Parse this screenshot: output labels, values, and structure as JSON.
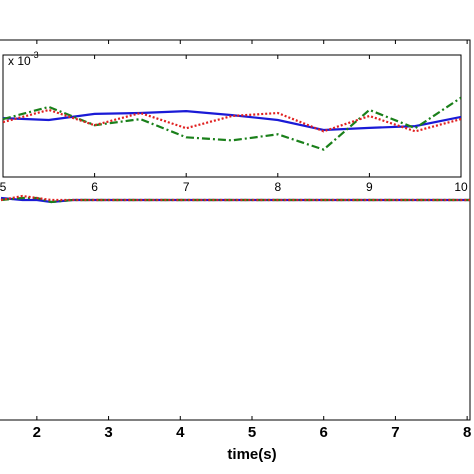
{
  "chart_data": [
    {
      "type": "line",
      "xlabel": "time(s)",
      "xlim": [
        1.5,
        8.04
      ],
      "xticks": [
        2,
        3,
        4,
        5,
        6,
        7,
        8
      ],
      "ylim": [
        -1.1,
        0.8
      ],
      "series": [
        {
          "name": "blue",
          "color": "#1a1ad6",
          "style": "solid",
          "x": [
            1.5,
            1.8,
            2.0,
            2.2,
            2.5,
            3,
            4,
            5,
            6,
            7,
            8.04
          ],
          "values": [
            0.01,
            0.0,
            0.0,
            -0.01,
            0.0,
            0,
            0,
            0,
            0,
            0,
            0
          ]
        },
        {
          "name": "green",
          "color": "#1a801a",
          "style": "dash-dot",
          "x": [
            1.5,
            1.8,
            2.0,
            2.2,
            2.5,
            3,
            4,
            5,
            6,
            7,
            8.04
          ],
          "values": [
            0.0,
            0.01,
            0.01,
            -0.01,
            0.0,
            0,
            0,
            0,
            0,
            0,
            0
          ]
        },
        {
          "name": "red",
          "color": "#e02020",
          "style": "dotted",
          "x": [
            1.5,
            1.8,
            2.0,
            2.2,
            2.5,
            3,
            4,
            5,
            6,
            7,
            8.04
          ],
          "values": [
            0.0,
            0.02,
            0.01,
            0.0,
            0.0,
            0,
            0,
            0,
            0,
            0,
            0
          ]
        }
      ]
    },
    {
      "type": "line",
      "multiplier": "x 10",
      "multiplier_exponent": "-3",
      "xlim": [
        5,
        10
      ],
      "xticks": [
        5,
        6,
        7,
        8,
        9,
        10
      ],
      "ylim": [
        -2,
        2
      ],
      "series": [
        {
          "name": "blue",
          "color": "#1a1ad6",
          "style": "solid",
          "x": [
            5,
            5.5,
            6,
            6.5,
            7,
            7.5,
            8,
            8.5,
            9,
            9.5,
            10
          ],
          "values": [
            -0.07,
            -0.13,
            0.07,
            0.1,
            0.16,
            0.03,
            -0.13,
            -0.46,
            -0.39,
            -0.33,
            -0.03
          ]
        },
        {
          "name": "green",
          "color": "#1a801a",
          "style": "dash-dot",
          "x": [
            5,
            5.5,
            6,
            6.5,
            7,
            7.5,
            8,
            8.5,
            9,
            9.5,
            10
          ],
          "values": [
            -0.1,
            0.3,
            -0.3,
            -0.1,
            -0.7,
            -0.8,
            -0.6,
            -1.1,
            0.2,
            -0.4,
            0.6
          ]
        },
        {
          "name": "red",
          "color": "#e02020",
          "style": "dotted",
          "x": [
            5,
            5.5,
            6,
            6.5,
            7,
            7.5,
            8,
            8.5,
            9,
            9.5,
            10
          ],
          "values": [
            -0.2,
            0.2,
            -0.3,
            0.1,
            -0.4,
            0.0,
            0.1,
            -0.5,
            0.0,
            -0.5,
            -0.1
          ]
        }
      ]
    }
  ]
}
